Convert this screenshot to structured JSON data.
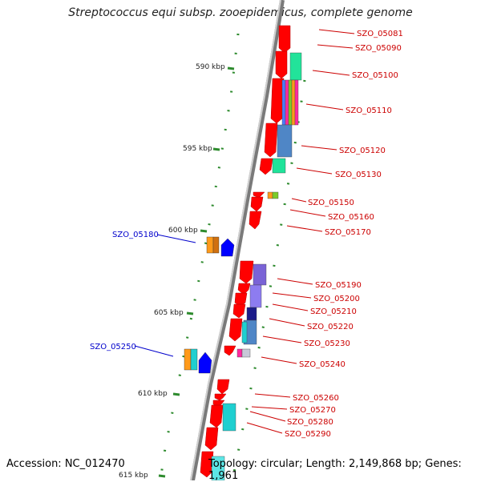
{
  "title": "Streptococcus equi subsp. zooepidemicus, complete genome",
  "accession": "Accession: NC_012470",
  "topology": "Topology: circular; Length: 2,149,868 bp; Genes: 1,961",
  "colors": {
    "backbone": "#8c8c8c",
    "gene_forward": "#ff0000",
    "label_right": "#cc0000",
    "label_left": "#0000cc",
    "tick_dot": "#2e8b2e"
  },
  "ruler": [
    {
      "label": "590 kbp"
    },
    {
      "label": "595 kbp"
    },
    {
      "label": "600 kbp"
    },
    {
      "label": "605 kbp"
    },
    {
      "label": "610 kbp"
    },
    {
      "label": "615 kbp"
    }
  ],
  "gene_labels_right": [
    "SZO_05081",
    "SZO_05090",
    "SZO_05100",
    "SZO_05110",
    "SZO_05120",
    "SZO_05130",
    "SZO_05150",
    "SZO_05160",
    "SZO_05170",
    "SZO_05190",
    "SZO_05200",
    "SZO_05210",
    "SZO_05220",
    "SZO_05230",
    "SZO_05240",
    "SZO_05260",
    "SZO_05270",
    "SZO_05280",
    "SZO_05290"
  ],
  "gene_labels_left": [
    "SZO_05180",
    "SZO_05250"
  ]
}
